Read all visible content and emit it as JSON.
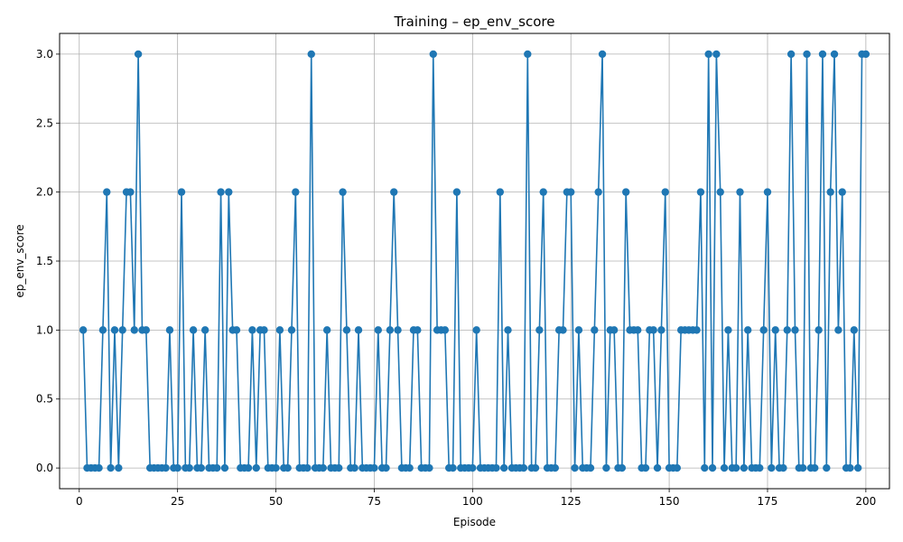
{
  "chart_data": {
    "type": "line",
    "title": "Training – ep_env_score",
    "xlabel": "Episode",
    "ylabel": "ep_env_score",
    "xlim": [
      -5,
      206
    ],
    "ylim": [
      -0.15,
      3.15
    ],
    "xticks": [
      0,
      25,
      50,
      75,
      100,
      125,
      150,
      175,
      200
    ],
    "xtick_labels": [
      "0",
      "25",
      "50",
      "75",
      "100",
      "125",
      "150",
      "175",
      "200"
    ],
    "yticks": [
      0,
      0.5,
      1,
      1.5,
      2,
      2.5,
      3
    ],
    "ytick_labels": [
      "0.0",
      "0.5",
      "1.0",
      "1.5",
      "2.0",
      "2.5",
      "3.0"
    ],
    "grid": true,
    "line_color": "#1f77b4",
    "marker": "circle",
    "x": [
      1,
      2,
      3,
      4,
      5,
      6,
      7,
      8,
      9,
      10,
      11,
      12,
      13,
      14,
      15,
      16,
      17,
      18,
      19,
      20,
      21,
      22,
      23,
      24,
      25,
      26,
      27,
      28,
      29,
      30,
      31,
      32,
      33,
      34,
      35,
      36,
      37,
      38,
      39,
      40,
      41,
      42,
      43,
      44,
      45,
      46,
      47,
      48,
      49,
      50,
      51,
      52,
      53,
      54,
      55,
      56,
      57,
      58,
      59,
      60,
      61,
      62,
      63,
      64,
      65,
      66,
      67,
      68,
      69,
      70,
      71,
      72,
      73,
      74,
      75,
      76,
      77,
      78,
      79,
      80,
      81,
      82,
      83,
      84,
      85,
      86,
      87,
      88,
      89,
      90,
      91,
      92,
      93,
      94,
      95,
      96,
      97,
      98,
      99,
      100,
      101,
      102,
      103,
      104,
      105,
      106,
      107,
      108,
      109,
      110,
      111,
      112,
      113,
      114,
      115,
      116,
      117,
      118,
      119,
      120,
      121,
      122,
      123,
      124,
      125,
      126,
      127,
      128,
      129,
      130,
      131,
      132,
      133,
      134,
      135,
      136,
      137,
      138,
      139,
      140,
      141,
      142,
      143,
      144,
      145,
      146,
      147,
      148,
      149,
      150,
      151,
      152,
      153,
      154,
      155,
      156,
      157,
      158,
      159,
      160,
      161,
      162,
      163,
      164,
      165,
      166,
      167,
      168,
      169,
      170,
      171,
      172,
      173,
      174,
      175,
      176,
      177,
      178,
      179,
      180,
      181,
      182,
      183,
      184,
      185,
      186,
      187,
      188,
      189,
      190,
      191,
      192,
      193,
      194,
      195,
      196,
      197,
      198,
      199,
      200
    ],
    "y": [
      1,
      0,
      0,
      0,
      0,
      1,
      2,
      0,
      1,
      0,
      1,
      2,
      2,
      1,
      3,
      1,
      1,
      0,
      0,
      0,
      0,
      0,
      1,
      0,
      0,
      2,
      0,
      0,
      1,
      0,
      0,
      1,
      0,
      0,
      0,
      2,
      0,
      2,
      1,
      1,
      0,
      0,
      0,
      1,
      0,
      1,
      1,
      0,
      0,
      0,
      1,
      0,
      0,
      1,
      2,
      0,
      0,
      0,
      3,
      0,
      0,
      0,
      1,
      0,
      0,
      0,
      2,
      1,
      0,
      0,
      1,
      0,
      0,
      0,
      0,
      1,
      0,
      0,
      1,
      2,
      1,
      0,
      0,
      0,
      1,
      1,
      0,
      0,
      0,
      3,
      1,
      1,
      1,
      0,
      0,
      2,
      0,
      0,
      0,
      0,
      1,
      0,
      0,
      0,
      0,
      0,
      2,
      0,
      1,
      0,
      0,
      0,
      0,
      3,
      0,
      0,
      1,
      2,
      0,
      0,
      0,
      1,
      1,
      2,
      2,
      0,
      1,
      0,
      0,
      0,
      1,
      2,
      3,
      0,
      1,
      1,
      0,
      0,
      2,
      1,
      1,
      1,
      0,
      0,
      1,
      1,
      0,
      1,
      2,
      0,
      0,
      0,
      1,
      1,
      1,
      1,
      1,
      2,
      0,
      3,
      0,
      3,
      2,
      0,
      1,
      0,
      0,
      2,
      0,
      1,
      0,
      0,
      0,
      1,
      2,
      0,
      1,
      0,
      0,
      1,
      3,
      1,
      0,
      0,
      3,
      0,
      0,
      1,
      3,
      0,
      2,
      3,
      1,
      2,
      0,
      0,
      1,
      0,
      3,
      3
    ]
  }
}
